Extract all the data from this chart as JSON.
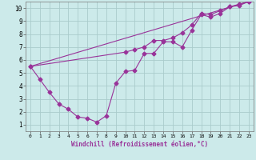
{
  "xlabel": "Windchill (Refroidissement éolien,°C)",
  "bg_color": "#cceaea",
  "line_color": "#993399",
  "grid_color": "#aacccc",
  "xlim": [
    -0.5,
    23.5
  ],
  "ylim": [
    0.5,
    10.5
  ],
  "xticks": [
    0,
    1,
    2,
    3,
    4,
    5,
    6,
    7,
    8,
    9,
    10,
    11,
    12,
    13,
    14,
    15,
    16,
    17,
    18,
    19,
    20,
    21,
    22,
    23
  ],
  "yticks": [
    1,
    2,
    3,
    4,
    5,
    6,
    7,
    8,
    9,
    10
  ],
  "line1_x": [
    0,
    1,
    2,
    3,
    4,
    5,
    6,
    7,
    8,
    9,
    10,
    11,
    12,
    13,
    14,
    15,
    16,
    17,
    18,
    19,
    20,
    21,
    22,
    23
  ],
  "line1_y": [
    5.5,
    4.5,
    3.5,
    2.6,
    2.2,
    1.6,
    1.5,
    1.2,
    1.7,
    4.2,
    5.1,
    5.2,
    6.5,
    6.5,
    7.4,
    7.4,
    7.0,
    8.3,
    9.5,
    9.3,
    9.6,
    10.1,
    10.2,
    10.5
  ],
  "line2_x": [
    0,
    10,
    11,
    12,
    13,
    14,
    15,
    16,
    17,
    18,
    19,
    20,
    21,
    22,
    23
  ],
  "line2_y": [
    5.5,
    6.6,
    6.8,
    7.0,
    7.5,
    7.5,
    7.7,
    8.1,
    8.7,
    9.6,
    9.5,
    9.8,
    10.1,
    10.3,
    10.5
  ],
  "line3_x": [
    0,
    23
  ],
  "line3_y": [
    5.5,
    10.5
  ]
}
